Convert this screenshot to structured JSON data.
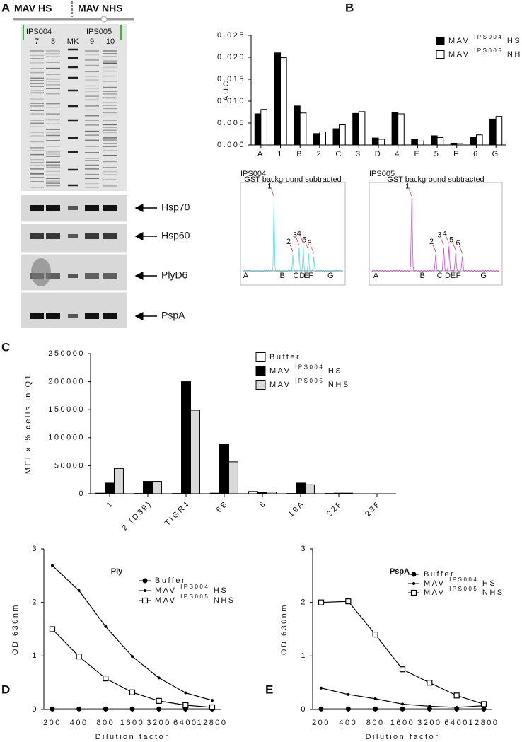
{
  "panel_labels": [
    "A",
    "B",
    "C",
    "D",
    "E"
  ],
  "gel": {
    "groups": [
      "MAV HS",
      "MAV NHS"
    ],
    "samples": [
      "IPS004",
      "IPS005"
    ],
    "lanes": [
      "7",
      "8",
      "MK",
      "9",
      "10"
    ],
    "blots": [
      "Hsp70",
      "Hsp60",
      "PlyD6",
      "PspA"
    ]
  },
  "insets": [
    {
      "title": "IPS004",
      "subtitle": "GST background subtracted",
      "color": "#5fd6e6",
      "peaks": [
        "1",
        "2",
        "3",
        "4",
        "5",
        "6"
      ],
      "regions": [
        "A",
        "B",
        "C",
        "D",
        "E",
        "F",
        "G"
      ]
    },
    {
      "title": "IPS005",
      "subtitle": "GST background subtracted",
      "color": "#d84ad8",
      "peaks": [
        "1",
        "2",
        "3",
        "4",
        "5",
        "6"
      ],
      "regions": [
        "A",
        "B",
        "C",
        "D",
        "E",
        "F",
        "G"
      ]
    }
  ],
  "chart_data": [
    {
      "type": "bar",
      "y_label": "AUC",
      "categories": [
        "A",
        "1",
        "B",
        "2",
        "C",
        "3",
        "D",
        "4",
        "E",
        "5",
        "F",
        "6",
        "G"
      ],
      "series": [
        {
          "name": "MAV IPS004 HS",
          "color": "#000000",
          "values": [
            0.0071,
            0.021,
            0.0089,
            0.0026,
            0.0037,
            0.0072,
            0.0016,
            0.0074,
            0.0013,
            0.0021,
            0.0004,
            0.0017,
            0.0059
          ]
        },
        {
          "name": "MAV IPS005 NHS",
          "color": "#ffffff",
          "values": [
            0.0081,
            0.0199,
            0.0073,
            0.003,
            0.0046,
            0.0076,
            0.0013,
            0.0071,
            0.0009,
            0.0017,
            0.0003,
            0.0023,
            0.0065
          ]
        }
      ],
      "ylim": [
        0,
        0.025
      ],
      "yticks": [
        {
          "value": 0,
          "label": "0.000"
        },
        0.005,
        {
          "value": 0.01,
          "label": "0.010"
        },
        0.015,
        {
          "value": 0.02,
          "label": "0.020"
        },
        0.025
      ],
      "legend": "upper right"
    },
    {
      "type": "bar",
      "y_label": "MFI x % cells in Q1",
      "categories": [
        "1",
        "2 (D39)",
        "TIGR4",
        "6B",
        "8",
        "19A",
        "22F",
        "23F"
      ],
      "series": [
        {
          "name": "Buffer",
          "color": "#ffffff",
          "values": [
            1000,
            500,
            500,
            1000,
            4000,
            500,
            500,
            0
          ]
        },
        {
          "name": "MAV IPS004 HS",
          "color": "#000000",
          "values": [
            19000,
            22000,
            200000,
            89000,
            3000,
            19000,
            1000,
            0
          ]
        },
        {
          "name": "MAV IPS005 NHS",
          "color": "#d9d9d9",
          "values": [
            45000,
            22000,
            149000,
            57000,
            3000,
            16000,
            1000,
            0
          ]
        }
      ],
      "ylim": [
        0,
        250000
      ],
      "yticks": [
        0,
        50000,
        100000,
        150000,
        200000,
        250000
      ],
      "legend": "upper right",
      "rotate_labels": true
    },
    {
      "type": "line",
      "title": "Ply",
      "x_label": "Dilution factor",
      "y_label": "OD 630nm",
      "categories": [
        "200",
        "400",
        "800",
        "1600",
        "3200",
        "6400",
        "12800"
      ],
      "series": [
        {
          "name": "Buffer",
          "color": "#000000",
          "marker": "circle",
          "values": [
            0.01,
            0.01,
            0.01,
            0.01,
            0.01,
            0.01,
            0.01
          ]
        },
        {
          "name": "MAV IPS004 HS",
          "color": "#000000",
          "marker": "dot",
          "values": [
            2.69,
            2.22,
            1.55,
            0.99,
            0.59,
            0.31,
            0.17
          ]
        },
        {
          "name": "MAV IPS005 NHS",
          "color": "#000000",
          "marker": "square",
          "values": [
            1.5,
            0.99,
            0.58,
            0.32,
            0.16,
            0.08,
            0.04
          ]
        }
      ],
      "ylim": [
        0,
        3
      ],
      "yticks": [
        0,
        1,
        2,
        3
      ],
      "legend": "upper right"
    },
    {
      "type": "line",
      "title": "PspA",
      "x_label": "Dilution factor",
      "y_label": "OD 630nm",
      "categories": [
        "200",
        "400",
        "800",
        "1600",
        "3200",
        "6400",
        "12800"
      ],
      "series": [
        {
          "name": "Buffer",
          "color": "#000000",
          "marker": "circle",
          "values": [
            0.01,
            0.01,
            0.01,
            0.01,
            0.01,
            0.01,
            0.01
          ]
        },
        {
          "name": "MAV IPS004 HS",
          "color": "#000000",
          "marker": "dot",
          "values": [
            0.4,
            0.28,
            0.2,
            0.1,
            0.06,
            0.04,
            0.07
          ]
        },
        {
          "name": "MAV IPS005 NHS",
          "color": "#000000",
          "marker": "square",
          "values": [
            2.0,
            2.02,
            1.4,
            0.75,
            0.5,
            0.26,
            0.1
          ]
        }
      ],
      "ylim": [
        0,
        3
      ],
      "yticks": [
        0,
        1,
        2,
        3
      ],
      "legend": "upper right"
    }
  ]
}
